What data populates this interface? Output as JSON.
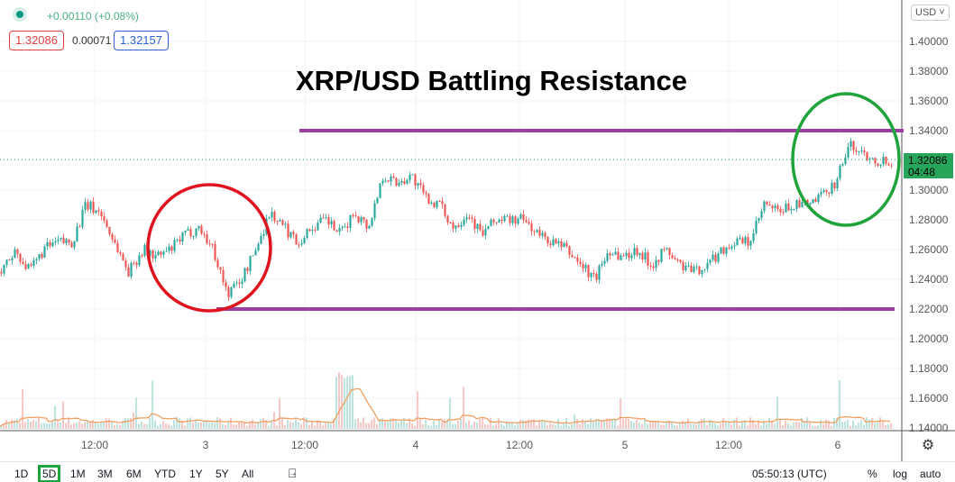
{
  "header": {
    "change": "+0.00110 (+0.08%)",
    "bid": "1.32086",
    "spread": "0.00071",
    "ask": "1.32157",
    "currency": "USD"
  },
  "current_price": {
    "value": "1.32086",
    "countdown": "04:48",
    "color": "#26a65b"
  },
  "timeframes": [
    "1D",
    "5D",
    "1M",
    "3M",
    "6M",
    "YTD",
    "1Y",
    "5Y",
    "All"
  ],
  "active_timeframe": "5D",
  "clock": "05:50:13 (UTC)",
  "scale_options": [
    "%",
    "log",
    "auto"
  ],
  "colors": {
    "up": "#26a69a",
    "down": "#ef5350",
    "annotation_line": "#9c3fa0",
    "red_circle": "#e0141e",
    "green_circle": "#1fa33a",
    "volume_ma": "#f0a060"
  },
  "chart_data": {
    "type": "candlestick",
    "title": "XRP/USD Battling Resistance",
    "ylim": [
      1.14,
      1.41
    ],
    "y_ticks": [
      "1.40000",
      "1.38000",
      "1.36000",
      "1.34000",
      "1.30000",
      "1.28000",
      "1.26000",
      "1.24000",
      "1.22000",
      "1.20000",
      "1.18000",
      "1.16000",
      "1.14000"
    ],
    "x_ticks": [
      "12:00",
      "3",
      "12:00",
      "4",
      "12:00",
      "5",
      "12:00",
      "6"
    ],
    "approx_closes": [
      1.245,
      1.26,
      1.245,
      1.26,
      1.265,
      1.265,
      1.29,
      1.285,
      1.265,
      1.245,
      1.26,
      1.255,
      1.26,
      1.27,
      1.275,
      1.26,
      1.23,
      1.24,
      1.26,
      1.285,
      1.275,
      1.265,
      1.275,
      1.28,
      1.27,
      1.285,
      1.275,
      1.31,
      1.305,
      1.31,
      1.295,
      1.29,
      1.275,
      1.285,
      1.27,
      1.28,
      1.28,
      1.28,
      1.27,
      1.265,
      1.26,
      1.25,
      1.24,
      1.26,
      1.255,
      1.26,
      1.25,
      1.26,
      1.25,
      1.245,
      1.25,
      1.26,
      1.265,
      1.265,
      1.29,
      1.285,
      1.29,
      1.29,
      1.295,
      1.305,
      1.33,
      1.325,
      1.32,
      1.32
    ],
    "resistance": 1.34,
    "support": 1.22
  }
}
